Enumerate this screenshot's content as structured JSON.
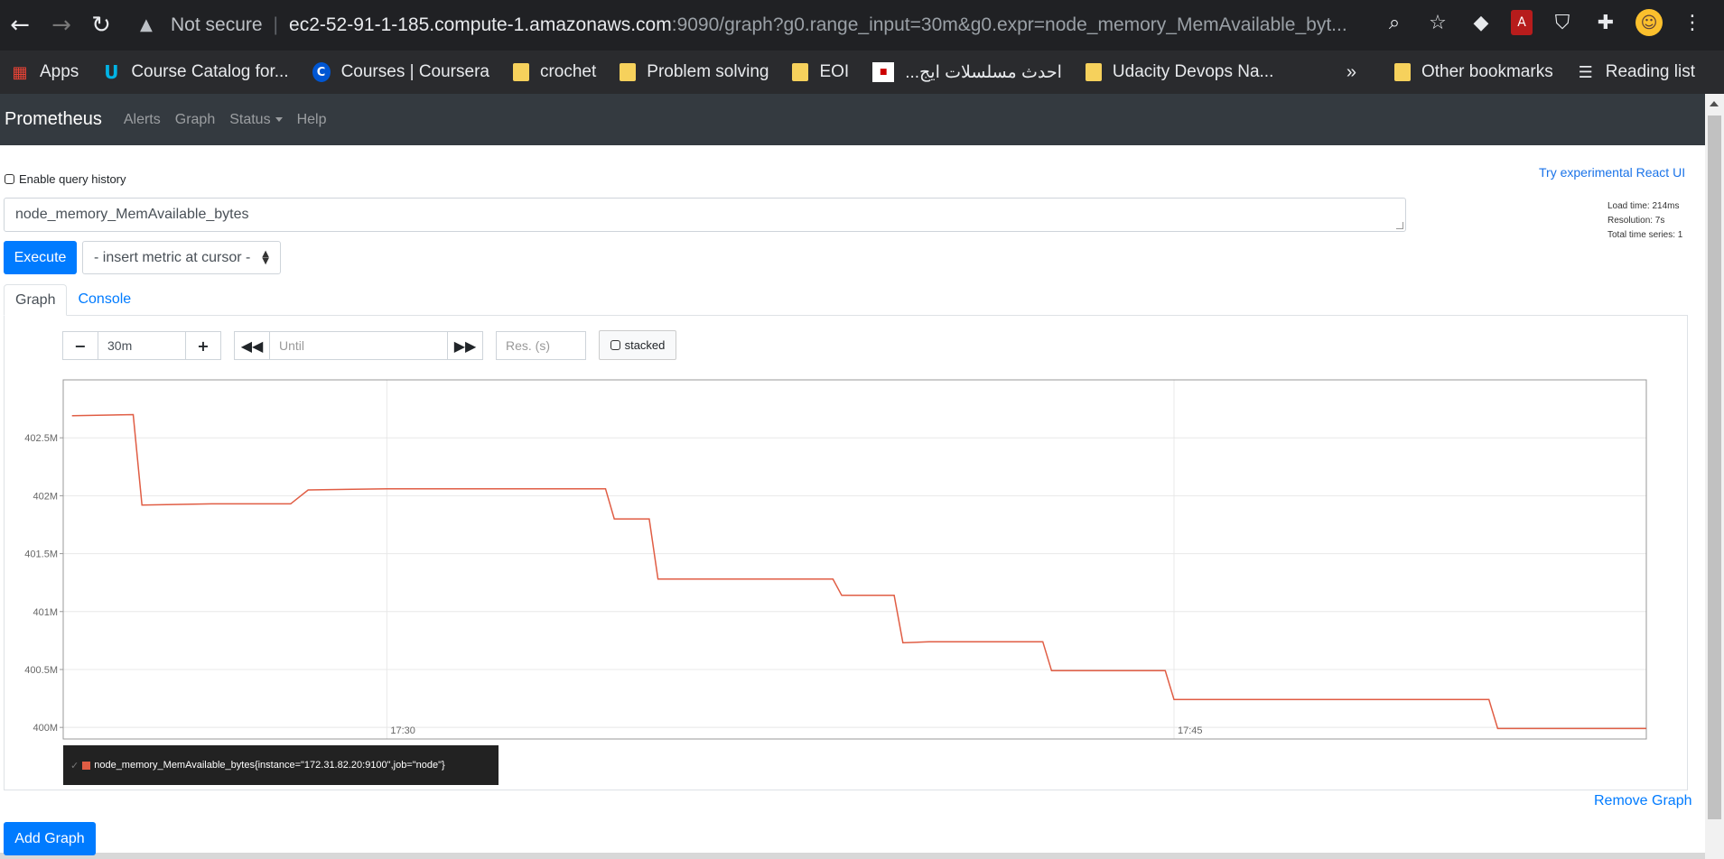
{
  "browser": {
    "nav": {
      "back_icon": "←",
      "forward_icon": "→",
      "reload_icon": "↻"
    },
    "omnibox": {
      "security_label": "Not secure",
      "separator": "|",
      "host": "ec2-52-91-1-185.compute-1.amazonaws.com",
      "rest": ":9090/graph?g0.range_input=30m&g0.expr=node_memory_MemAvailable_byt..."
    },
    "toolbar_icons": [
      "zoom-icon",
      "star-icon",
      "extension-cube-icon",
      "pdf-icon",
      "shield-icon",
      "puzzle-icon",
      "avatar",
      "menu-icon"
    ]
  },
  "bookmarks": {
    "items": [
      {
        "label": "Apps",
        "icon": "apps-grid-icon"
      },
      {
        "label": "Course Catalog for...",
        "icon": "udacity-icon"
      },
      {
        "label": "Courses | Coursera",
        "icon": "coursera-icon"
      },
      {
        "label": "crochet",
        "icon": "folder-icon"
      },
      {
        "label": "Problem solving",
        "icon": "folder-icon"
      },
      {
        "label": "EOI",
        "icon": "folder-icon"
      },
      {
        "label": "...احدث مسلسلات ايج",
        "icon": "egybest-icon"
      },
      {
        "label": "Udacity Devops Na...",
        "icon": "folder-icon"
      }
    ],
    "overflow": "»",
    "other": "Other bookmarks",
    "reading_list": "Reading list"
  },
  "prometheus": {
    "brand": "Prometheus",
    "nav": {
      "alerts": "Alerts",
      "graph": "Graph",
      "status": "Status",
      "help": "Help"
    },
    "enable_history": "Enable query history",
    "react_link": "Try experimental React UI",
    "stats": {
      "load_time": "Load time: 214ms",
      "resolution": "Resolution: 7s",
      "total_series": "Total time series: 1"
    },
    "expression": "node_memory_MemAvailable_bytes",
    "execute": "Execute",
    "insert_metric": "- insert metric at cursor -",
    "tabs": {
      "graph": "Graph",
      "console": "Console"
    },
    "controls": {
      "range": "30m",
      "until_placeholder": "Until",
      "res_placeholder": "Res. (s)",
      "stacked": "stacked"
    },
    "legend": "node_memory_MemAvailable_bytes{instance=\"172.31.82.20:9100\",job=\"node\"}",
    "remove_graph": "Remove Graph",
    "add_graph": "Add Graph"
  },
  "chart_data": {
    "type": "line",
    "title": "",
    "xlabel": "",
    "ylabel": "",
    "x_ticks": [
      "17:30",
      "17:45"
    ],
    "y_ticks": [
      "402.5M",
      "402M",
      "401.5M",
      "401M",
      "400.5M",
      "400M"
    ],
    "ylim": [
      399.9,
      403.0
    ],
    "series": [
      {
        "name": "node_memory_MemAvailable_bytes{instance=\"172.31.82.20:9100\",job=\"node\"}",
        "color": "#e05d44",
        "x": [
          "17:24:00",
          "17:25:10",
          "17:25:20",
          "17:26:40",
          "17:27:30",
          "17:28:10",
          "17:28:30",
          "17:30:00",
          "17:34:10",
          "17:34:20",
          "17:35:00",
          "17:35:10",
          "17:38:30",
          "17:38:40",
          "17:39:40",
          "17:39:50",
          "17:40:20",
          "17:42:30",
          "17:42:40",
          "17:44:50",
          "17:45:00",
          "17:51:00",
          "17:51:10",
          "17:54:00"
        ],
        "values": [
          402.69,
          402.7,
          401.92,
          401.93,
          401.93,
          401.93,
          402.05,
          402.06,
          402.06,
          401.8,
          401.8,
          401.28,
          401.28,
          401.14,
          401.14,
          400.73,
          400.74,
          400.74,
          400.49,
          400.49,
          400.24,
          400.24,
          399.99,
          399.99
        ]
      }
    ],
    "grid": true,
    "legend_position": "bottom-left"
  }
}
